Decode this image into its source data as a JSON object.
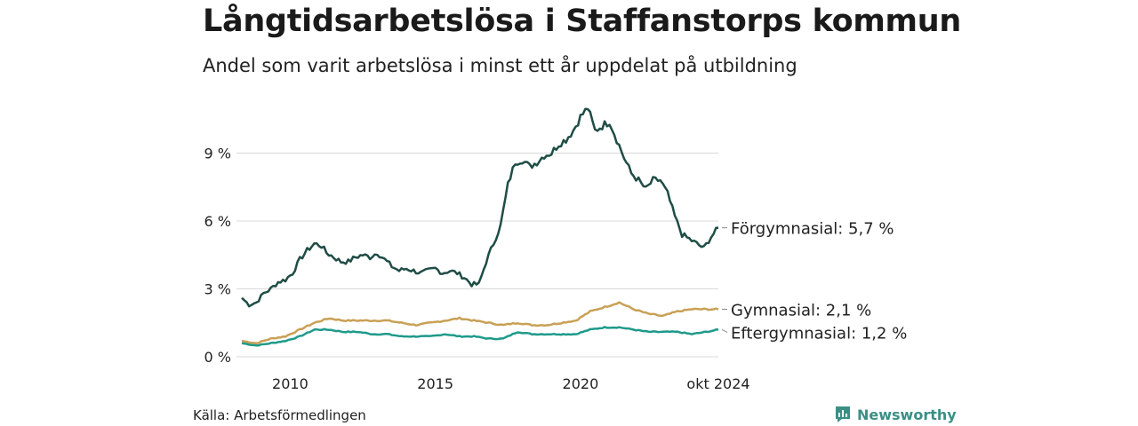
{
  "header": {
    "title": "Långtidsarbetslösa i Staffanstorps kommun",
    "subtitle": "Andel som varit arbetslösa i minst ett år uppdelat på utbildning"
  },
  "footer": {
    "source": "Källa: Arbetsförmedlingen",
    "brand": "Newsworthy"
  },
  "colors": {
    "forgymnasial": "#1f4d45",
    "gymnasial": "#c9a055",
    "eftergymnasial": "#1f9a8a",
    "grid": "#d9d9d9",
    "brand": "#3b8f86"
  },
  "chart_data": {
    "type": "line",
    "x_start": "2008-05",
    "x_end": "2024-10",
    "x_ticks": [
      {
        "date": "2010-01",
        "label": "2010"
      },
      {
        "date": "2015-01",
        "label": "2015"
      },
      {
        "date": "2020-01",
        "label": "2020"
      },
      {
        "date": "2024-10",
        "label": "okt 2024"
      }
    ],
    "y_ticks": [
      {
        "value": 0,
        "label": "0 %"
      },
      {
        "value": 3,
        "label": "3 %"
      },
      {
        "value": 6,
        "label": "6 %"
      },
      {
        "value": 9,
        "label": "9 %"
      }
    ],
    "ylim": [
      0,
      11.5
    ],
    "grid": true,
    "legend": "end-labels-right",
    "series": [
      {
        "name": "Förgymnasial",
        "end_label": "Förgymnasial: 5,7 %",
        "color_key": "forgymnasial",
        "points": [
          [
            "2008-05",
            2.6
          ],
          [
            "2008-08",
            2.3
          ],
          [
            "2008-11",
            2.4
          ],
          [
            "2009-02",
            2.8
          ],
          [
            "2009-05",
            3.0
          ],
          [
            "2009-08",
            3.3
          ],
          [
            "2009-11",
            3.4
          ],
          [
            "2010-02",
            3.7
          ],
          [
            "2010-05",
            4.3
          ],
          [
            "2010-08",
            4.7
          ],
          [
            "2010-11",
            5.0
          ],
          [
            "2011-02",
            4.9
          ],
          [
            "2011-04",
            4.6
          ],
          [
            "2011-07",
            4.4
          ],
          [
            "2011-10",
            4.2
          ],
          [
            "2012-01",
            4.2
          ],
          [
            "2012-04",
            4.4
          ],
          [
            "2012-07",
            4.5
          ],
          [
            "2012-10",
            4.4
          ],
          [
            "2013-01",
            4.6
          ],
          [
            "2013-04",
            4.3
          ],
          [
            "2013-07",
            4.0
          ],
          [
            "2013-10",
            3.8
          ],
          [
            "2014-01",
            3.9
          ],
          [
            "2014-04",
            3.8
          ],
          [
            "2014-07",
            3.7
          ],
          [
            "2014-10",
            3.8
          ],
          [
            "2015-01",
            3.9
          ],
          [
            "2015-04",
            3.7
          ],
          [
            "2015-07",
            3.8
          ],
          [
            "2015-10",
            3.7
          ],
          [
            "2016-01",
            3.5
          ],
          [
            "2016-04",
            3.2
          ],
          [
            "2016-07",
            3.2
          ],
          [
            "2016-10",
            4.2
          ],
          [
            "2017-01",
            5.0
          ],
          [
            "2017-04",
            5.8
          ],
          [
            "2017-07",
            7.6
          ],
          [
            "2017-10",
            8.6
          ],
          [
            "2018-01",
            8.7
          ],
          [
            "2018-04",
            8.4
          ],
          [
            "2018-07",
            8.6
          ],
          [
            "2018-10",
            8.9
          ],
          [
            "2019-01",
            9.0
          ],
          [
            "2019-04",
            9.4
          ],
          [
            "2019-07",
            9.6
          ],
          [
            "2019-10",
            10.0
          ],
          [
            "2020-01",
            10.6
          ],
          [
            "2020-04",
            11.0
          ],
          [
            "2020-07",
            10.0
          ],
          [
            "2020-10",
            10.2
          ],
          [
            "2021-01",
            10.4
          ],
          [
            "2021-04",
            9.6
          ],
          [
            "2021-07",
            8.8
          ],
          [
            "2021-10",
            8.1
          ],
          [
            "2022-01",
            7.8
          ],
          [
            "2022-04",
            7.4
          ],
          [
            "2022-07",
            7.8
          ],
          [
            "2022-10",
            7.8
          ],
          [
            "2023-01",
            7.2
          ],
          [
            "2023-04",
            6.2
          ],
          [
            "2023-07",
            5.4
          ],
          [
            "2023-10",
            5.2
          ],
          [
            "2024-01",
            5.0
          ],
          [
            "2024-04",
            4.8
          ],
          [
            "2024-07",
            5.3
          ],
          [
            "2024-10",
            5.7
          ]
        ]
      },
      {
        "name": "Gymnasial",
        "end_label": "Gymnasial: 2,1 %",
        "color_key": "gymnasial",
        "points": [
          [
            "2008-05",
            0.7
          ],
          [
            "2008-11",
            0.6
          ],
          [
            "2009-05",
            0.8
          ],
          [
            "2009-11",
            0.9
          ],
          [
            "2010-05",
            1.2
          ],
          [
            "2010-11",
            1.5
          ],
          [
            "2011-05",
            1.7
          ],
          [
            "2011-11",
            1.6
          ],
          [
            "2012-05",
            1.6
          ],
          [
            "2012-11",
            1.6
          ],
          [
            "2013-05",
            1.6
          ],
          [
            "2013-11",
            1.5
          ],
          [
            "2014-05",
            1.4
          ],
          [
            "2014-11",
            1.5
          ],
          [
            "2015-05",
            1.6
          ],
          [
            "2015-11",
            1.7
          ],
          [
            "2016-05",
            1.6
          ],
          [
            "2016-11",
            1.5
          ],
          [
            "2017-05",
            1.4
          ],
          [
            "2017-11",
            1.5
          ],
          [
            "2018-05",
            1.4
          ],
          [
            "2018-11",
            1.4
          ],
          [
            "2019-05",
            1.5
          ],
          [
            "2019-11",
            1.6
          ],
          [
            "2020-05",
            2.0
          ],
          [
            "2020-11",
            2.2
          ],
          [
            "2021-05",
            2.4
          ],
          [
            "2021-11",
            2.1
          ],
          [
            "2022-05",
            1.9
          ],
          [
            "2022-11",
            1.8
          ],
          [
            "2023-05",
            2.0
          ],
          [
            "2023-11",
            2.1
          ],
          [
            "2024-05",
            2.1
          ],
          [
            "2024-10",
            2.1
          ]
        ]
      },
      {
        "name": "Eftergymnasial",
        "end_label": "Eftergymnasial: 1,2 %",
        "color_key": "eftergymnasial",
        "points": [
          [
            "2008-05",
            0.6
          ],
          [
            "2008-11",
            0.5
          ],
          [
            "2009-05",
            0.6
          ],
          [
            "2009-11",
            0.7
          ],
          [
            "2010-05",
            0.9
          ],
          [
            "2010-11",
            1.2
          ],
          [
            "2011-05",
            1.2
          ],
          [
            "2011-11",
            1.1
          ],
          [
            "2012-05",
            1.1
          ],
          [
            "2012-11",
            1.0
          ],
          [
            "2013-05",
            1.0
          ],
          [
            "2013-11",
            0.9
          ],
          [
            "2014-05",
            0.9
          ],
          [
            "2014-11",
            0.9
          ],
          [
            "2015-05",
            1.0
          ],
          [
            "2015-11",
            0.9
          ],
          [
            "2016-05",
            0.9
          ],
          [
            "2016-11",
            0.8
          ],
          [
            "2017-05",
            0.8
          ],
          [
            "2017-11",
            1.1
          ],
          [
            "2018-05",
            1.0
          ],
          [
            "2018-11",
            1.0
          ],
          [
            "2019-05",
            1.0
          ],
          [
            "2019-11",
            1.0
          ],
          [
            "2020-05",
            1.2
          ],
          [
            "2020-11",
            1.3
          ],
          [
            "2021-05",
            1.3
          ],
          [
            "2021-11",
            1.2
          ],
          [
            "2022-05",
            1.1
          ],
          [
            "2022-11",
            1.1
          ],
          [
            "2023-05",
            1.1
          ],
          [
            "2023-11",
            1.0
          ],
          [
            "2024-05",
            1.1
          ],
          [
            "2024-10",
            1.2
          ]
        ]
      }
    ]
  }
}
